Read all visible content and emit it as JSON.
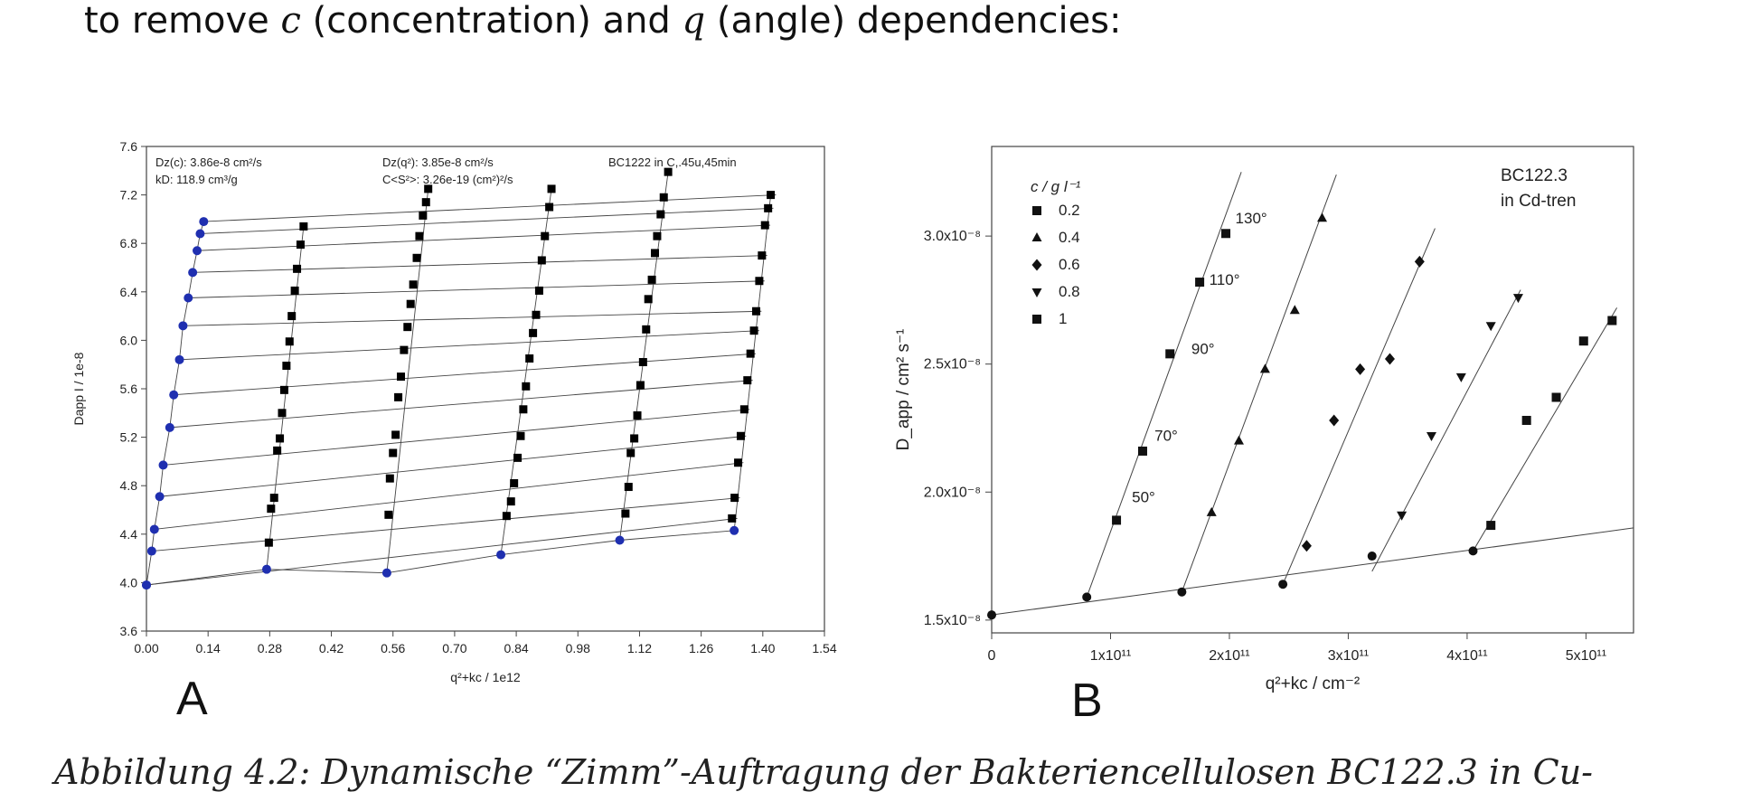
{
  "intro": {
    "before": "to remove ",
    "var_c": "c",
    "mid1": " (concentration) and ",
    "var_q": "q",
    "mid2": " (angle) dependencies:"
  },
  "caption": "Abbildung 4.2: Dynamische “Zimm”-Auftragung der Bakteriencellulosen BC122.3 in Cu-",
  "chart_data": [
    {
      "id": "A",
      "type": "scatter",
      "panel_label": "A",
      "xlabel": "q²+kc / 1e12",
      "ylabel": "Dapp I / 1e-8",
      "xlim": [
        0.0,
        1.54
      ],
      "ylim": [
        3.6,
        7.6
      ],
      "xticks": [
        "0.00",
        "0.14",
        "0.28",
        "0.42",
        "0.56",
        "0.70",
        "0.84",
        "0.98",
        "1.12",
        "1.26",
        "1.40",
        "1.54"
      ],
      "yticks": [
        "3.6",
        "4.0",
        "4.4",
        "4.8",
        "5.2",
        "5.6",
        "6.0",
        "6.4",
        "6.8",
        "7.2",
        "7.6"
      ],
      "annotations": {
        "a1": "Dz(c): 3.86e-8 cm²/s",
        "a2": "kD: 118.9 cm³/g",
        "a3": "Dz(q²): 3.85e-8 cm²/s",
        "a4": "C<S²>: 3.26e-19 (cm²)²/s",
        "a5": "BC1222 in C,.45u,45min"
      },
      "colors": {
        "extrapolated": "#1f2fb0",
        "measured": "#000000"
      },
      "concentration_lines": [
        {
          "x0": 0.0,
          "y0": 4.0,
          "x1": 1.4,
          "y1": 4.63
        },
        {
          "x0": 0.273,
          "y0": 4.12,
          "x1": 1.305,
          "y1": 4.46
        },
        {
          "x0": 0.546,
          "y0": 4.09,
          "x1": 1.322,
          "y1": 4.44
        },
        {
          "x0": 0.805,
          "y0": 4.24,
          "x1": 1.395,
          "y1": 4.52
        },
        {
          "x0": 1.075,
          "y0": 4.35,
          "x1": 1.398,
          "y1": 4.51
        },
        {
          "x0": 1.335,
          "y0": 4.43,
          "x1": 1.4,
          "y1": 4.46
        }
      ],
      "extrapolated_c0": [
        [
          0.0,
          3.98
        ],
        [
          0.012,
          4.26
        ],
        [
          0.018,
          4.44
        ],
        [
          0.03,
          4.71
        ],
        [
          0.038,
          4.97
        ],
        [
          0.053,
          5.28
        ],
        [
          0.062,
          5.55
        ],
        [
          0.075,
          5.84
        ],
        [
          0.083,
          6.12
        ],
        [
          0.095,
          6.35
        ],
        [
          0.105,
          6.56
        ],
        [
          0.115,
          6.74
        ],
        [
          0.122,
          6.88
        ],
        [
          0.13,
          6.98
        ]
      ],
      "extrapolated_q0": [
        [
          0.0,
          3.98
        ],
        [
          0.273,
          4.11
        ],
        [
          0.546,
          4.08
        ],
        [
          0.805,
          4.23
        ],
        [
          1.075,
          4.35
        ],
        [
          1.335,
          4.43
        ]
      ],
      "measured_columns": [
        [
          [
            0.278,
            4.33
          ],
          [
            0.283,
            4.61
          ],
          [
            0.29,
            4.7
          ],
          [
            0.297,
            5.09
          ],
          [
            0.303,
            5.19
          ],
          [
            0.308,
            5.4
          ],
          [
            0.313,
            5.59
          ],
          [
            0.318,
            5.79
          ],
          [
            0.325,
            5.99
          ],
          [
            0.33,
            6.2
          ],
          [
            0.337,
            6.41
          ],
          [
            0.342,
            6.59
          ],
          [
            0.35,
            6.79
          ],
          [
            0.357,
            6.94
          ]
        ],
        [
          [
            0.55,
            4.56
          ],
          [
            0.553,
            4.86
          ],
          [
            0.56,
            5.07
          ],
          [
            0.566,
            5.22
          ],
          [
            0.572,
            5.53
          ],
          [
            0.578,
            5.7
          ],
          [
            0.585,
            5.92
          ],
          [
            0.593,
            6.11
          ],
          [
            0.6,
            6.3
          ],
          [
            0.606,
            6.46
          ],
          [
            0.614,
            6.68
          ],
          [
            0.62,
            6.86
          ],
          [
            0.628,
            7.03
          ],
          [
            0.635,
            7.14
          ],
          [
            0.64,
            7.25
          ]
        ],
        [
          [
            0.818,
            4.55
          ],
          [
            0.828,
            4.67
          ],
          [
            0.835,
            4.82
          ],
          [
            0.843,
            5.03
          ],
          [
            0.85,
            5.21
          ],
          [
            0.856,
            5.43
          ],
          [
            0.862,
            5.62
          ],
          [
            0.87,
            5.85
          ],
          [
            0.878,
            6.06
          ],
          [
            0.885,
            6.21
          ],
          [
            0.892,
            6.41
          ],
          [
            0.898,
            6.66
          ],
          [
            0.905,
            6.86
          ],
          [
            0.915,
            7.1
          ],
          [
            0.92,
            7.25
          ]
        ],
        [
          [
            1.088,
            4.57
          ],
          [
            1.095,
            4.79
          ],
          [
            1.1,
            5.07
          ],
          [
            1.108,
            5.19
          ],
          [
            1.115,
            5.38
          ],
          [
            1.122,
            5.63
          ],
          [
            1.128,
            5.82
          ],
          [
            1.135,
            6.09
          ],
          [
            1.14,
            6.34
          ],
          [
            1.148,
            6.5
          ],
          [
            1.155,
            6.72
          ],
          [
            1.16,
            6.86
          ],
          [
            1.168,
            7.04
          ],
          [
            1.175,
            7.18
          ],
          [
            1.185,
            7.39
          ]
        ],
        [
          [
            1.33,
            4.53
          ],
          [
            1.336,
            4.7
          ],
          [
            1.344,
            4.99
          ],
          [
            1.35,
            5.21
          ],
          [
            1.358,
            5.43
          ],
          [
            1.365,
            5.67
          ],
          [
            1.372,
            5.89
          ],
          [
            1.38,
            6.08
          ],
          [
            1.385,
            6.24
          ],
          [
            1.392,
            6.49
          ],
          [
            1.398,
            6.7
          ],
          [
            1.405,
            6.95
          ],
          [
            1.412,
            7.09
          ],
          [
            1.418,
            7.2
          ]
        ]
      ]
    },
    {
      "id": "B",
      "type": "scatter",
      "panel_label": "B",
      "xlabel": "q²+kc / cm⁻²",
      "ylabel": "D_app / cm² s⁻¹",
      "xlim": [
        0,
        540000000000.0
      ],
      "ylim": [
        1.45e-08,
        3.35e-08
      ],
      "xticks": [
        {
          "v": 0,
          "label": "0"
        },
        {
          "v": 100000000000.0,
          "label": "1x10¹¹"
        },
        {
          "v": 200000000000.0,
          "label": "2x10¹¹"
        },
        {
          "v": 300000000000.0,
          "label": "3x10¹¹"
        },
        {
          "v": 400000000000.0,
          "label": "4x10¹¹"
        },
        {
          "v": 500000000000.0,
          "label": "5x10¹¹"
        }
      ],
      "yticks": [
        {
          "v": 1.5e-08,
          "label": "1.5x10⁻⁸"
        },
        {
          "v": 2e-08,
          "label": "2.0x10⁻⁸"
        },
        {
          "v": 2.5e-08,
          "label": "2.5x10⁻⁸"
        },
        {
          "v": 3e-08,
          "label": "3.0x10⁻⁸"
        }
      ],
      "sample_label": [
        "BC122.3",
        "in Cd-tren"
      ],
      "legend": {
        "title": "c / g l⁻¹",
        "entries": [
          {
            "marker": "square",
            "label": "0.2"
          },
          {
            "marker": "triangle-up",
            "label": "0.4"
          },
          {
            "marker": "diamond",
            "label": "0.6"
          },
          {
            "marker": "triangle-down",
            "label": "0.8"
          },
          {
            "marker": "square",
            "label": "1"
          }
        ]
      },
      "angle_labels": [
        {
          "label": "50°",
          "x": 118000000000.0,
          "y": 1.96e-08
        },
        {
          "label": "70°",
          "x": 137000000000.0,
          "y": 2.2e-08
        },
        {
          "label": "90°",
          "x": 168000000000.0,
          "y": 2.54e-08
        },
        {
          "label": "110°",
          "x": 183000000000.0,
          "y": 2.81e-08
        },
        {
          "label": "130°",
          "x": 205000000000.0,
          "y": 3.05e-08
        }
      ],
      "baseline": {
        "x0": 0,
        "y0": 1.52e-08,
        "x1": 540000000000.0,
        "y1": 1.86e-08
      },
      "fit_lines": [
        {
          "x0": 80000000000.0,
          "y0": 1.59e-08,
          "x1": 210000000000.0,
          "y1": 3.25e-08
        },
        {
          "x0": 160000000000.0,
          "y0": 1.61e-08,
          "x1": 290000000000.0,
          "y1": 3.24e-08
        },
        {
          "x0": 245000000000.0,
          "y0": 1.64e-08,
          "x1": 373000000000.0,
          "y1": 3.03e-08
        },
        {
          "x0": 320000000000.0,
          "y0": 1.69e-08,
          "x1": 445000000000.0,
          "y1": 2.79e-08
        },
        {
          "x0": 405000000000.0,
          "y0": 1.77e-08,
          "x1": 526000000000.0,
          "y1": 2.72e-08
        }
      ],
      "extrapolated": [
        [
          0,
          1.52e-08
        ],
        [
          80000000000.0,
          1.59e-08
        ],
        [
          160000000000.0,
          1.61e-08
        ],
        [
          245000000000.0,
          1.64e-08
        ],
        [
          320000000000.0,
          1.75e-08
        ],
        [
          405000000000.0,
          1.77e-08
        ]
      ],
      "series": [
        {
          "label": "0.2",
          "marker": "square",
          "points": [
            [
              105000000000.0,
              1.89e-08
            ],
            [
              127000000000.0,
              2.16e-08
            ],
            [
              150000000000.0,
              2.54e-08
            ],
            [
              175000000000.0,
              2.82e-08
            ],
            [
              197000000000.0,
              3.01e-08
            ]
          ]
        },
        {
          "label": "0.4",
          "marker": "triangle-up",
          "points": [
            [
              185000000000.0,
              1.92e-08
            ],
            [
              208000000000.0,
              2.2e-08
            ],
            [
              230000000000.0,
              2.48e-08
            ],
            [
              255000000000.0,
              2.71e-08
            ],
            [
              278000000000.0,
              3.07e-08
            ]
          ]
        },
        {
          "label": "0.6",
          "marker": "diamond",
          "points": [
            [
              265000000000.0,
              1.79e-08
            ],
            [
              288000000000.0,
              2.28e-08
            ],
            [
              310000000000.0,
              2.48e-08
            ],
            [
              335000000000.0,
              2.52e-08
            ],
            [
              360000000000.0,
              2.9e-08
            ]
          ]
        },
        {
          "label": "0.8",
          "marker": "triangle-down",
          "points": [
            [
              345000000000.0,
              1.91e-08
            ],
            [
              370000000000.0,
              2.22e-08
            ],
            [
              395000000000.0,
              2.45e-08
            ],
            [
              420000000000.0,
              2.65e-08
            ],
            [
              443000000000.0,
              2.76e-08
            ]
          ]
        },
        {
          "label": "1",
          "marker": "square",
          "points": [
            [
              420000000000.0,
              1.87e-08
            ],
            [
              450000000000.0,
              2.28e-08
            ],
            [
              475000000000.0,
              2.37e-08
            ],
            [
              498000000000.0,
              2.59e-08
            ],
            [
              522000000000.0,
              2.67e-08
            ]
          ]
        }
      ]
    }
  ]
}
